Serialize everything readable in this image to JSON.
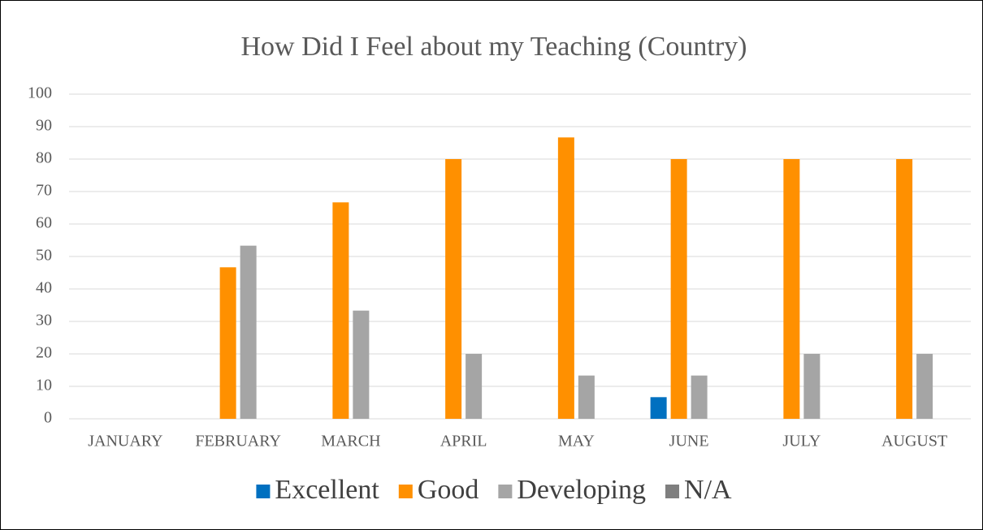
{
  "chart_data": {
    "type": "bar",
    "title": "How Did I Feel about my Teaching (Country)",
    "categories": [
      "JANUARY",
      "FEBRUARY",
      "MARCH",
      "APRIL",
      "MAY",
      "JUNE",
      "JULY",
      "AUGUST"
    ],
    "series": [
      {
        "name": "Excellent",
        "color": "#0070c0",
        "values": [
          0,
          0,
          0,
          0,
          0,
          6.67,
          0,
          0
        ]
      },
      {
        "name": "Good",
        "color": "#ff9000",
        "values": [
          0,
          46.67,
          66.67,
          80,
          86.67,
          80,
          80,
          80
        ]
      },
      {
        "name": "Developing",
        "color": "#a5a5a5",
        "values": [
          0,
          53.33,
          33.33,
          20,
          13.33,
          13.33,
          20,
          20
        ]
      },
      {
        "name": "N/A",
        "color": "#7f7f7f",
        "values": [
          0,
          0,
          0,
          0,
          0,
          0,
          0,
          0
        ]
      }
    ],
    "ylim": [
      0,
      100
    ],
    "yticks": [
      0,
      10,
      20,
      30,
      40,
      50,
      60,
      70,
      80,
      90,
      100
    ],
    "grid": true,
    "legend": "bottom"
  }
}
